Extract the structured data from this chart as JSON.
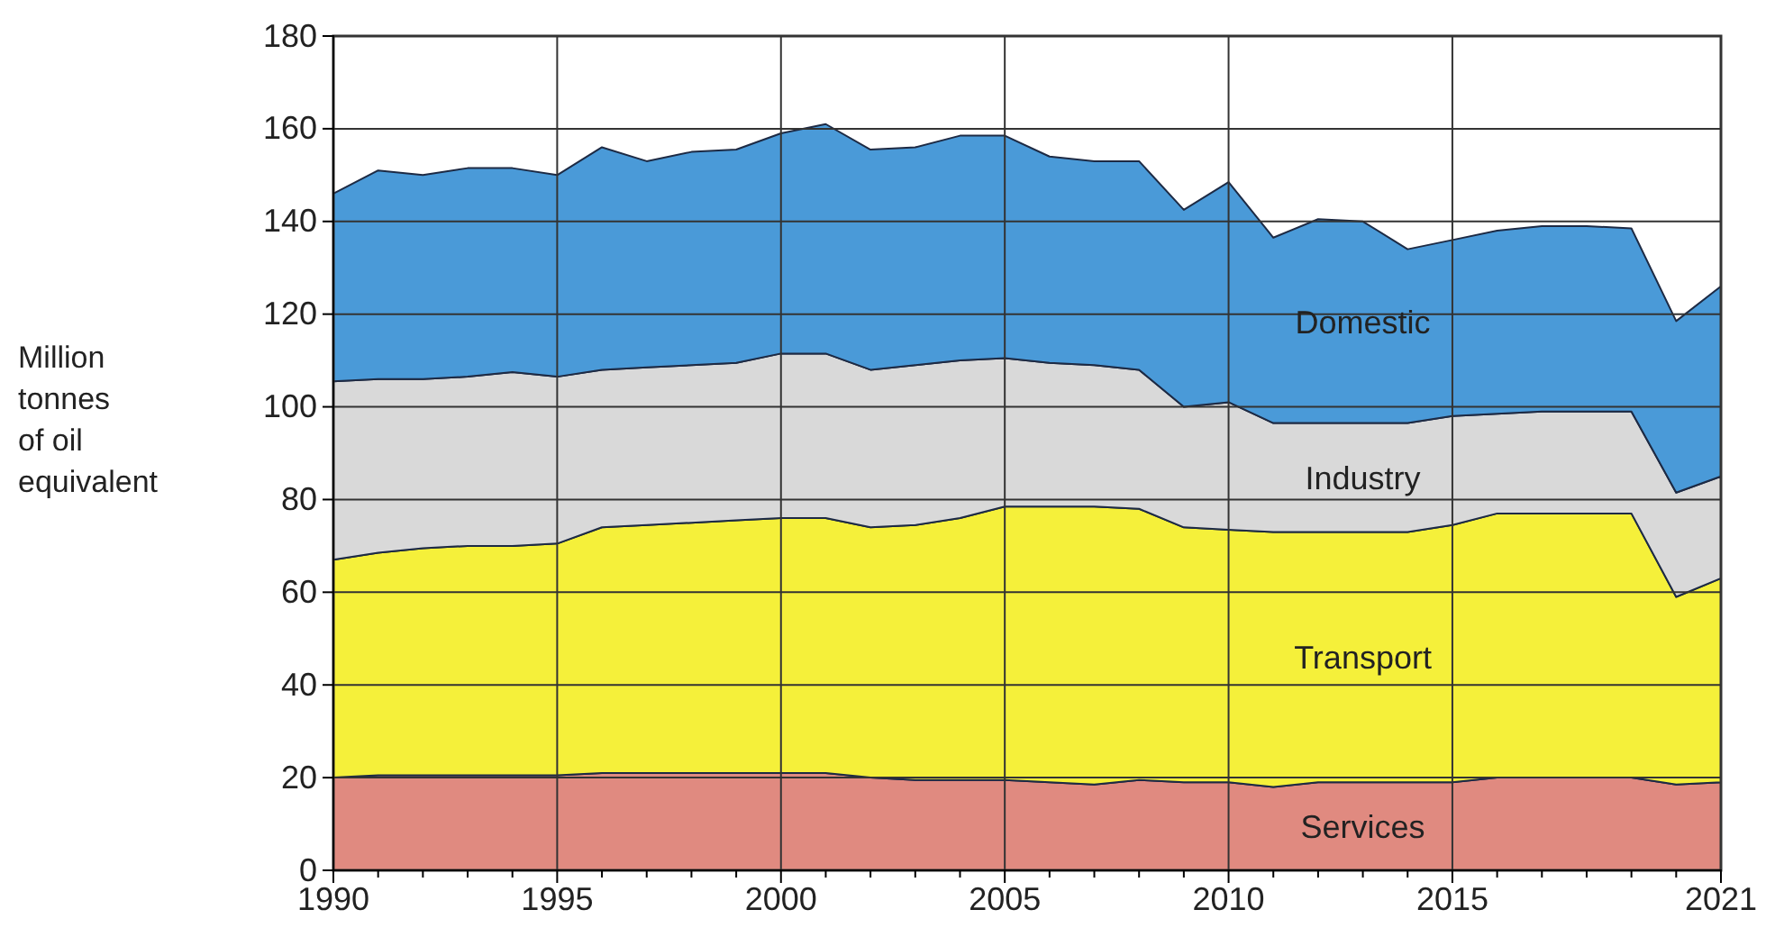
{
  "chart_data": {
    "type": "area",
    "stacked": true,
    "ylabel": "Million tonnes of oil equivalent",
    "x": [
      1990,
      1991,
      1992,
      1993,
      1994,
      1995,
      1996,
      1997,
      1998,
      1999,
      2000,
      2001,
      2002,
      2003,
      2004,
      2005,
      2006,
      2007,
      2008,
      2009,
      2010,
      2011,
      2012,
      2013,
      2014,
      2015,
      2016,
      2017,
      2018,
      2019,
      2020,
      2021
    ],
    "series": [
      {
        "name": "Services",
        "color": "#e08a80",
        "values": [
          20,
          20.5,
          20.5,
          20.5,
          20.5,
          20.5,
          21,
          21,
          21,
          21,
          21,
          21,
          20,
          19.5,
          19.5,
          19.5,
          19,
          18.5,
          19.5,
          19,
          19,
          18,
          19,
          19,
          19,
          19,
          20,
          20,
          20,
          20,
          18.5,
          19
        ]
      },
      {
        "name": "Transport",
        "color": "#f5f03a",
        "values": [
          47,
          48,
          49,
          49.5,
          49.5,
          50,
          53,
          53.5,
          54,
          54.5,
          55,
          55,
          54,
          55,
          56.5,
          59,
          59.5,
          60,
          58.5,
          55,
          54.5,
          55,
          54,
          54,
          54,
          55.5,
          57,
          57,
          57,
          57,
          40.5,
          44
        ]
      },
      {
        "name": "Industry",
        "color": "#d9d9d9",
        "values": [
          38.5,
          37.5,
          36.5,
          36.5,
          37.5,
          36,
          34,
          34,
          34,
          34,
          35.5,
          35.5,
          34,
          34.5,
          34,
          32,
          31,
          30.5,
          30,
          26,
          27.5,
          23.5,
          23.5,
          23.5,
          23.5,
          23.5,
          21.5,
          22,
          22,
          22,
          22.5,
          22
        ]
      },
      {
        "name": "Domestic",
        "color": "#4a9ad8",
        "values": [
          40.5,
          45,
          44,
          45,
          44,
          43.5,
          48,
          44.5,
          46,
          46,
          47.5,
          49.5,
          47.5,
          47,
          48.5,
          48,
          44.5,
          44,
          45,
          42.5,
          47.5,
          40,
          44,
          43.5,
          37.5,
          38,
          39.5,
          40,
          40,
          39.5,
          37,
          41
        ]
      }
    ],
    "xlim": [
      1990,
      2021
    ],
    "xticks": [
      1990,
      {
        "value": 1991,
        "label": null
      },
      {
        "value": 1992,
        "label": null
      },
      {
        "value": 1993,
        "label": null
      },
      {
        "value": 1994,
        "label": null
      },
      1995,
      {
        "value": 1996,
        "label": null
      },
      {
        "value": 1997,
        "label": null
      },
      {
        "value": 1998,
        "label": null
      },
      {
        "value": 1999,
        "label": null
      },
      2000,
      {
        "value": 2001,
        "label": null
      },
      {
        "value": 2002,
        "label": null
      },
      {
        "value": 2003,
        "label": null
      },
      {
        "value": 2004,
        "label": null
      },
      2005,
      {
        "value": 2006,
        "label": null
      },
      {
        "value": 2007,
        "label": null
      },
      {
        "value": 2008,
        "label": null
      },
      {
        "value": 2009,
        "label": null
      },
      2010,
      {
        "value": 2011,
        "label": null
      },
      {
        "value": 2012,
        "label": null
      },
      {
        "value": 2013,
        "label": null
      },
      {
        "value": 2014,
        "label": null
      },
      2015,
      {
        "value": 2016,
        "label": null
      },
      {
        "value": 2017,
        "label": null
      },
      {
        "value": 2018,
        "label": null
      },
      {
        "value": 2019,
        "label": null
      },
      {
        "value": 2020,
        "label": null
      },
      2021
    ],
    "ylim": [
      0,
      180
    ],
    "yticks": [
      0,
      20,
      40,
      60,
      80,
      100,
      120,
      140,
      160,
      180
    ],
    "grid": true,
    "legend": false
  }
}
